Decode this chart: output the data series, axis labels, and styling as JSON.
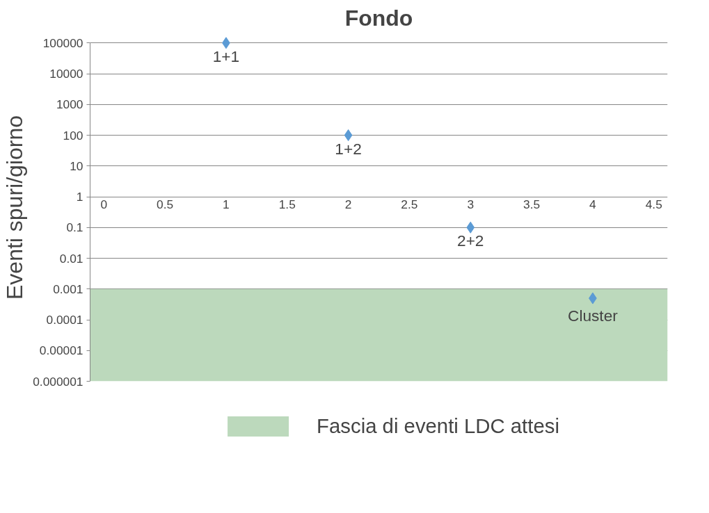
{
  "chart_data": {
    "type": "scatter",
    "title": "Fondo",
    "ylabel": "Eventi spuri/giorno",
    "x": [
      1,
      2,
      3,
      4
    ],
    "series": [
      {
        "color": "#5b9bd5",
        "values": [
          100000,
          100,
          0.1,
          0.0005
        ]
      }
    ],
    "annotations": [
      {
        "text": "1+1",
        "x": 1,
        "y": 100000
      },
      {
        "text": "1+2",
        "x": 2,
        "y": 100
      },
      {
        "text": "2+2",
        "x": 3,
        "y": 0.1
      },
      {
        "text": "Cluster",
        "x": 4,
        "y": 0.0005
      }
    ],
    "bands": [
      {
        "axis": "y",
        "from": 1e-06,
        "to": 0.001,
        "label": "Fascia di eventi LDC attesi",
        "color": "#bcd9bc"
      }
    ],
    "log": "y",
    "marker": "diamond",
    "grid": "y",
    "legend": "bottom",
    "xlim": [
      0,
      4.5
    ],
    "xticks": [
      0,
      0.5,
      1,
      1.5,
      2,
      2.5,
      3,
      3.5,
      4,
      4.5
    ],
    "ylim": [
      1e-06,
      100000
    ],
    "yticks": [
      {
        "value": 1e-06,
        "label": "0.000001"
      },
      {
        "value": 1e-05,
        "label": "0.00001"
      },
      0.0001,
      0.001,
      0.01,
      0.1,
      1,
      10,
      100,
      1000,
      10000,
      100000
    ]
  }
}
